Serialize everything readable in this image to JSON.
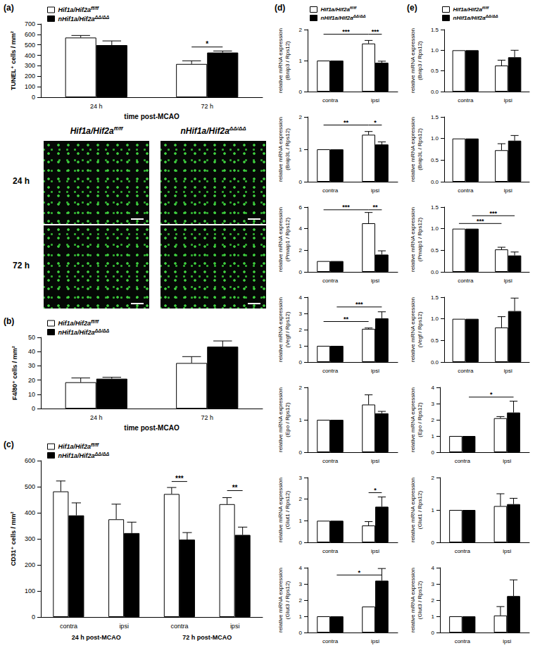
{
  "chart_data": [
    {
      "type": "bar",
      "panel_label": "(a)",
      "y_label": "TUNEL⁺ cells / mm²",
      "x_label": "time post-MCAO",
      "categories": [
        "24 h",
        "72 h"
      ],
      "series": [
        {
          "name": "Hif1a/Hif2a ff/ff",
          "color": "#ffffff",
          "values": [
            570,
            318
          ],
          "errors": [
            20,
            30
          ]
        },
        {
          "name": "nHif1a/Hif2a ΔΔ/ΔΔ",
          "color": "#000000",
          "values": [
            498,
            427
          ],
          "errors": [
            40,
            15
          ]
        }
      ],
      "ylim": [
        0,
        700
      ],
      "yticks": [
        0,
        100,
        200,
        300,
        400,
        500,
        600,
        700
      ],
      "grid": false,
      "legend": "top-left",
      "annotations": [
        {
          "from": [
            1,
            0
          ],
          "to": [
            1,
            1
          ],
          "y": 480,
          "label": "*"
        }
      ]
    },
    {
      "type": "bar",
      "panel_label": "(b)",
      "y_label": "F4/80⁺ cells / mm²",
      "x_label": "time post-MCAO",
      "categories": [
        "24 h",
        "72 h"
      ],
      "series": [
        {
          "name": "Hif1a/Hif2a ff/ff",
          "color": "#ffffff",
          "values": [
            18.5,
            32
          ],
          "errors": [
            3,
            4.5
          ]
        },
        {
          "name": "nHif1a/Hif2a ΔΔ/ΔΔ",
          "color": "#000000",
          "values": [
            21,
            43.5
          ],
          "errors": [
            1,
            4
          ]
        }
      ],
      "ylim": [
        0,
        50
      ],
      "yticks": [
        0,
        10,
        20,
        30,
        40,
        50
      ],
      "grid": false,
      "legend": "top-left"
    },
    {
      "type": "bar",
      "panel_label": "(c)",
      "y_label": "CD31⁺ cells / mm²",
      "categories": [
        "contra",
        "ipsi",
        "contra",
        "ipsi"
      ],
      "groups": [
        "24 h post-MCAO",
        "72 h post-MCAO"
      ],
      "series": [
        {
          "name": "Hif1a/Hif2a ff/ff",
          "color": "#ffffff",
          "values": [
            482,
            375,
            472,
            433
          ],
          "errors": [
            40,
            58,
            25,
            25
          ]
        },
        {
          "name": "nHif1a/Hif2a ΔΔ/ΔΔ",
          "color": "#000000",
          "values": [
            390,
            322,
            297,
            315
          ],
          "errors": [
            48,
            42,
            27,
            30
          ]
        }
      ],
      "ylim": [
        0,
        600
      ],
      "yticks": [
        0,
        100,
        200,
        300,
        400,
        500,
        600
      ],
      "grid": false,
      "legend": "top-left",
      "annotations": [
        {
          "from": [
            2,
            0
          ],
          "to": [
            2,
            1
          ],
          "y": 520,
          "label": "***"
        },
        {
          "from": [
            3,
            0
          ],
          "to": [
            3,
            1
          ],
          "y": 485,
          "label": "**"
        }
      ]
    },
    {
      "type": "bar",
      "panel_label": "(d)",
      "y_label": "relative mRNA expression\n(Bnip3 / Rps12)",
      "categories": [
        "contra",
        "ipsi"
      ],
      "series": [
        {
          "name": "Hif1a/Hif2a ff/ff",
          "color": "#ffffff",
          "values": [
            1,
            1.55
          ],
          "errors": [
            null,
            0.1
          ]
        },
        {
          "name": "nHif1a/Hif2a ΔΔ/ΔΔ",
          "color": "#000000",
          "values": [
            1,
            0.93
          ],
          "errors": [
            null,
            0.05
          ]
        }
      ],
      "ylim": [
        0,
        2
      ],
      "yticks": [
        0,
        1,
        2
      ],
      "grid": false,
      "legend": "top-left",
      "annotations": [
        {
          "from": [
            0,
            0
          ],
          "to": [
            1,
            0
          ],
          "y": 1.85,
          "label": "***"
        },
        {
          "from": [
            1,
            0
          ],
          "to": [
            1,
            1
          ],
          "y": 1.85,
          "label": "***"
        }
      ]
    },
    {
      "type": "bar",
      "y_label": "relative mRNA expression\n(Bnip3L / Rps12)",
      "categories": [
        "contra",
        "ipsi"
      ],
      "series": [
        {
          "name": "Hif1a/Hif2a ff/ff",
          "color": "#ffffff",
          "values": [
            1,
            1.45
          ],
          "errors": [
            null,
            0.1
          ]
        },
        {
          "name": "nHif1a/Hif2a ΔΔ/ΔΔ",
          "color": "#000000",
          "values": [
            1,
            1.15
          ],
          "errors": [
            null,
            0.08
          ]
        }
      ],
      "ylim": [
        0,
        2
      ],
      "yticks": [
        0,
        1,
        2
      ],
      "grid": false,
      "annotations": [
        {
          "from": [
            0,
            0
          ],
          "to": [
            1,
            0
          ],
          "y": 1.75,
          "label": "**"
        },
        {
          "from": [
            1,
            0
          ],
          "to": [
            1,
            1
          ],
          "y": 1.75,
          "label": "*"
        }
      ]
    },
    {
      "type": "bar",
      "y_label": "relative mRNA expression\n(Pmaip1 / Rps12)",
      "categories": [
        "contra",
        "ipsi"
      ],
      "series": [
        {
          "name": "Hif1a/Hif2a ff/ff",
          "color": "#ffffff",
          "values": [
            1,
            4.5
          ],
          "errors": [
            null,
            1.0
          ]
        },
        {
          "name": "nHif1a/Hif2a ΔΔ/ΔΔ",
          "color": "#000000",
          "values": [
            1,
            1.6
          ],
          "errors": [
            null,
            0.35
          ]
        }
      ],
      "ylim": [
        0,
        6
      ],
      "yticks": [
        0,
        2,
        4,
        6
      ],
      "grid": false,
      "annotations": [
        {
          "from": [
            0,
            0
          ],
          "to": [
            1,
            0
          ],
          "y": 5.75,
          "label": "***"
        },
        {
          "from": [
            1,
            0
          ],
          "to": [
            1,
            1
          ],
          "y": 5.75,
          "label": "**"
        }
      ]
    },
    {
      "type": "bar",
      "y_label": "relative mRNA expression\n(Vegf / Rps12)",
      "categories": [
        "contra",
        "ipsi"
      ],
      "series": [
        {
          "name": "Hif1a/Hif2a ff/ff",
          "color": "#ffffff",
          "values": [
            1,
            2.05
          ],
          "errors": [
            null,
            0.05
          ]
        },
        {
          "name": "nHif1a/Hif2a ΔΔ/ΔΔ",
          "color": "#000000",
          "values": [
            1,
            2.7
          ],
          "errors": [
            null,
            0.4
          ]
        }
      ],
      "ylim": [
        0,
        4
      ],
      "yticks": [
        0,
        1,
        2,
        3,
        4
      ],
      "grid": false,
      "annotations": [
        {
          "from": [
            0,
            0
          ],
          "to": [
            1,
            0
          ],
          "y": 2.5,
          "label": "**"
        },
        {
          "from": [
            0,
            1
          ],
          "to": [
            1,
            1
          ],
          "y": 3.4,
          "label": "***"
        }
      ]
    },
    {
      "type": "bar",
      "y_label": "relative mRNA expression\n(Epo / Rps12)",
      "categories": [
        "contra",
        "ipsi"
      ],
      "series": [
        {
          "name": "Hif1a/Hif2a ff/ff",
          "color": "#ffffff",
          "values": [
            1,
            1.47
          ],
          "errors": [
            null,
            0.3
          ]
        },
        {
          "name": "nHif1a/Hif2a ΔΔ/ΔΔ",
          "color": "#000000",
          "values": [
            1,
            1.2
          ],
          "errors": [
            null,
            0.06
          ]
        }
      ],
      "ylim": [
        0,
        2
      ],
      "yticks": [
        0,
        1,
        2
      ],
      "grid": false
    },
    {
      "type": "bar",
      "y_label": "relative mRNA expression\n(Glut1 / Rps12)",
      "categories": [
        "contra",
        "ipsi"
      ],
      "series": [
        {
          "name": "Hif1a/Hif2a ff/ff",
          "color": "#ffffff",
          "values": [
            1,
            0.78
          ],
          "errors": [
            null,
            0.18
          ]
        },
        {
          "name": "nHif1a/Hif2a ΔΔ/ΔΔ",
          "color": "#000000",
          "values": [
            1,
            1.65
          ],
          "errors": [
            null,
            0.45
          ]
        }
      ],
      "ylim": [
        0,
        3
      ],
      "yticks": [
        0,
        1,
        2,
        3
      ],
      "grid": false,
      "annotations": [
        {
          "from": [
            1,
            0
          ],
          "to": [
            1,
            1
          ],
          "y": 2.3,
          "label": "*"
        }
      ]
    },
    {
      "type": "bar",
      "y_label": "relative mRNA expression\n(Glut3 / Rps12)",
      "categories": [
        "contra",
        "ipsi"
      ],
      "series": [
        {
          "name": "Hif1a/Hif2a ff/ff",
          "color": "#ffffff",
          "values": [
            1,
            1.6
          ],
          "errors": [
            null,
            null
          ]
        },
        {
          "name": "nHif1a/Hif2a ΔΔ/ΔΔ",
          "color": "#000000",
          "values": [
            1,
            3.2
          ],
          "errors": [
            null,
            0.75
          ]
        }
      ],
      "ylim": [
        0,
        4
      ],
      "yticks": [
        0,
        1,
        2,
        3,
        4
      ],
      "grid": false,
      "annotations": [
        {
          "from": [
            0,
            1
          ],
          "to": [
            1,
            1
          ],
          "y": 3.55,
          "label": "*"
        }
      ]
    },
    {
      "type": "bar",
      "panel_label": "(e)",
      "y_label": "relative mRNA expression\n(Bnip3 / Rps12)",
      "categories": [
        "contra",
        "ipsi"
      ],
      "series": [
        {
          "name": "Hif1a/Hif2a ff/ff",
          "color": "#ffffff",
          "values": [
            1,
            0.63
          ],
          "errors": [
            null,
            0.13
          ]
        },
        {
          "name": "nHif1a/Hif2a ΔΔ/ΔΔ",
          "color": "#000000",
          "values": [
            1,
            0.83
          ],
          "errors": [
            null,
            0.17
          ]
        }
      ],
      "ylim": [
        0,
        1.5
      ],
      "yticks": [
        {
          "value": 0,
          "label": "0.0"
        },
        0.5,
        {
          "value": 1,
          "label": "1.0"
        },
        1.5
      ],
      "grid": false,
      "legend": "top-left"
    },
    {
      "type": "bar",
      "y_label": "relative mRNA expression\n(Bnip3L / Rps12)",
      "categories": [
        "contra",
        "ipsi"
      ],
      "series": [
        {
          "name": "Hif1a/Hif2a ff/ff",
          "color": "#ffffff",
          "values": [
            1,
            0.73
          ],
          "errors": [
            null,
            0.15
          ]
        },
        {
          "name": "nHif1a/Hif2a ΔΔ/ΔΔ",
          "color": "#000000",
          "values": [
            1,
            0.95
          ],
          "errors": [
            null,
            0.12
          ]
        }
      ],
      "ylim": [
        0,
        1.5
      ],
      "yticks": [
        {
          "value": 0,
          "label": "0.0"
        },
        0.5,
        {
          "value": 1,
          "label": "1.0"
        },
        1.5
      ],
      "grid": false
    },
    {
      "type": "bar",
      "y_label": "relative mRNA expression\n(Pmaip1 / Rps12)",
      "categories": [
        "contra",
        "ipsi"
      ],
      "series": [
        {
          "name": "Hif1a/Hif2a ff/ff",
          "color": "#ffffff",
          "values": [
            1,
            0.52
          ],
          "errors": [
            null,
            0.05
          ]
        },
        {
          "name": "nHif1a/Hif2a ΔΔ/ΔΔ",
          "color": "#000000",
          "values": [
            1,
            0.38
          ],
          "errors": [
            null,
            0.08
          ]
        }
      ],
      "ylim": [
        0,
        1.5
      ],
      "yticks": [
        {
          "value": 0,
          "label": "0.0"
        },
        0.5,
        {
          "value": 1,
          "label": "1.0"
        },
        1.5
      ],
      "grid": false,
      "annotations": [
        {
          "from": [
            0,
            0
          ],
          "to": [
            1,
            0
          ],
          "y": 1.12,
          "label": "***"
        },
        {
          "from": [
            0,
            1
          ],
          "to": [
            1,
            1
          ],
          "y": 1.3,
          "label": "***"
        }
      ]
    },
    {
      "type": "bar",
      "y_label": "relative mRNA expression\n(Vegf / Rps12)",
      "categories": [
        "contra",
        "ipsi"
      ],
      "series": [
        {
          "name": "Hif1a/Hif2a ff/ff",
          "color": "#ffffff",
          "values": [
            1,
            0.8
          ],
          "errors": [
            null,
            0.25
          ]
        },
        {
          "name": "nHif1a/Hif2a ΔΔ/ΔΔ",
          "color": "#000000",
          "values": [
            1,
            1.18
          ],
          "errors": [
            null,
            0.3
          ]
        }
      ],
      "ylim": [
        0,
        1.5
      ],
      "yticks": [
        {
          "value": 0,
          "label": "0.0"
        },
        0.5,
        {
          "value": 1,
          "label": "1.0"
        },
        1.5
      ],
      "grid": false
    },
    {
      "type": "bar",
      "y_label": "relative mRNA expression\n(Epo / Rps12)",
      "categories": [
        "contra",
        "ipsi"
      ],
      "series": [
        {
          "name": "Hif1a/Hif2a ff/ff",
          "color": "#ffffff",
          "values": [
            1,
            2.1
          ],
          "errors": [
            null,
            0.1
          ]
        },
        {
          "name": "nHif1a/Hif2a ΔΔ/ΔΔ",
          "color": "#000000",
          "values": [
            1,
            2.45
          ],
          "errors": [
            null,
            0.7
          ]
        }
      ],
      "ylim": [
        0,
        4
      ],
      "yticks": [
        0,
        1,
        2,
        3,
        4
      ],
      "grid": false,
      "annotations": [
        {
          "from": [
            0,
            1
          ],
          "to": [
            1,
            1
          ],
          "y": 3.4,
          "label": "*"
        }
      ]
    },
    {
      "type": "bar",
      "y_label": "relative mRNA expression\n(Glut1 / Rps12)",
      "categories": [
        "contra",
        "ipsi"
      ],
      "series": [
        {
          "name": "Hif1a/Hif2a ff/ff",
          "color": "#ffffff",
          "values": [
            1,
            1.12
          ],
          "errors": [
            null,
            0.38
          ]
        },
        {
          "name": "nHif1a/Hif2a ΔΔ/ΔΔ",
          "color": "#000000",
          "values": [
            1,
            1.18
          ],
          "errors": [
            null,
            0.18
          ]
        }
      ],
      "ylim": [
        0,
        2
      ],
      "yticks": [
        0,
        1,
        2
      ],
      "grid": false
    },
    {
      "type": "bar",
      "y_label": "relative mRNA expression\n(Glut3 / Rps12)",
      "categories": [
        "contra",
        "ipsi"
      ],
      "series": [
        {
          "name": "Hif1a/Hif2a ff/ff",
          "color": "#ffffff",
          "values": [
            1,
            1.05
          ],
          "errors": [
            null,
            0.55
          ]
        },
        {
          "name": "nHif1a/Hif2a ΔΔ/ΔΔ",
          "color": "#000000",
          "values": [
            1,
            2.25
          ],
          "errors": [
            null,
            1.0
          ]
        }
      ],
      "ylim": [
        0,
        4
      ],
      "yticks": [
        0,
        1,
        2,
        3,
        4
      ],
      "grid": false
    }
  ],
  "micrographs": {
    "columns": [
      "Hif1a/Hif2a ff/ff",
      "nHif1a/Hif2a ΔΔ/ΔΔ"
    ],
    "rows": [
      "24 h",
      "72 h"
    ]
  }
}
